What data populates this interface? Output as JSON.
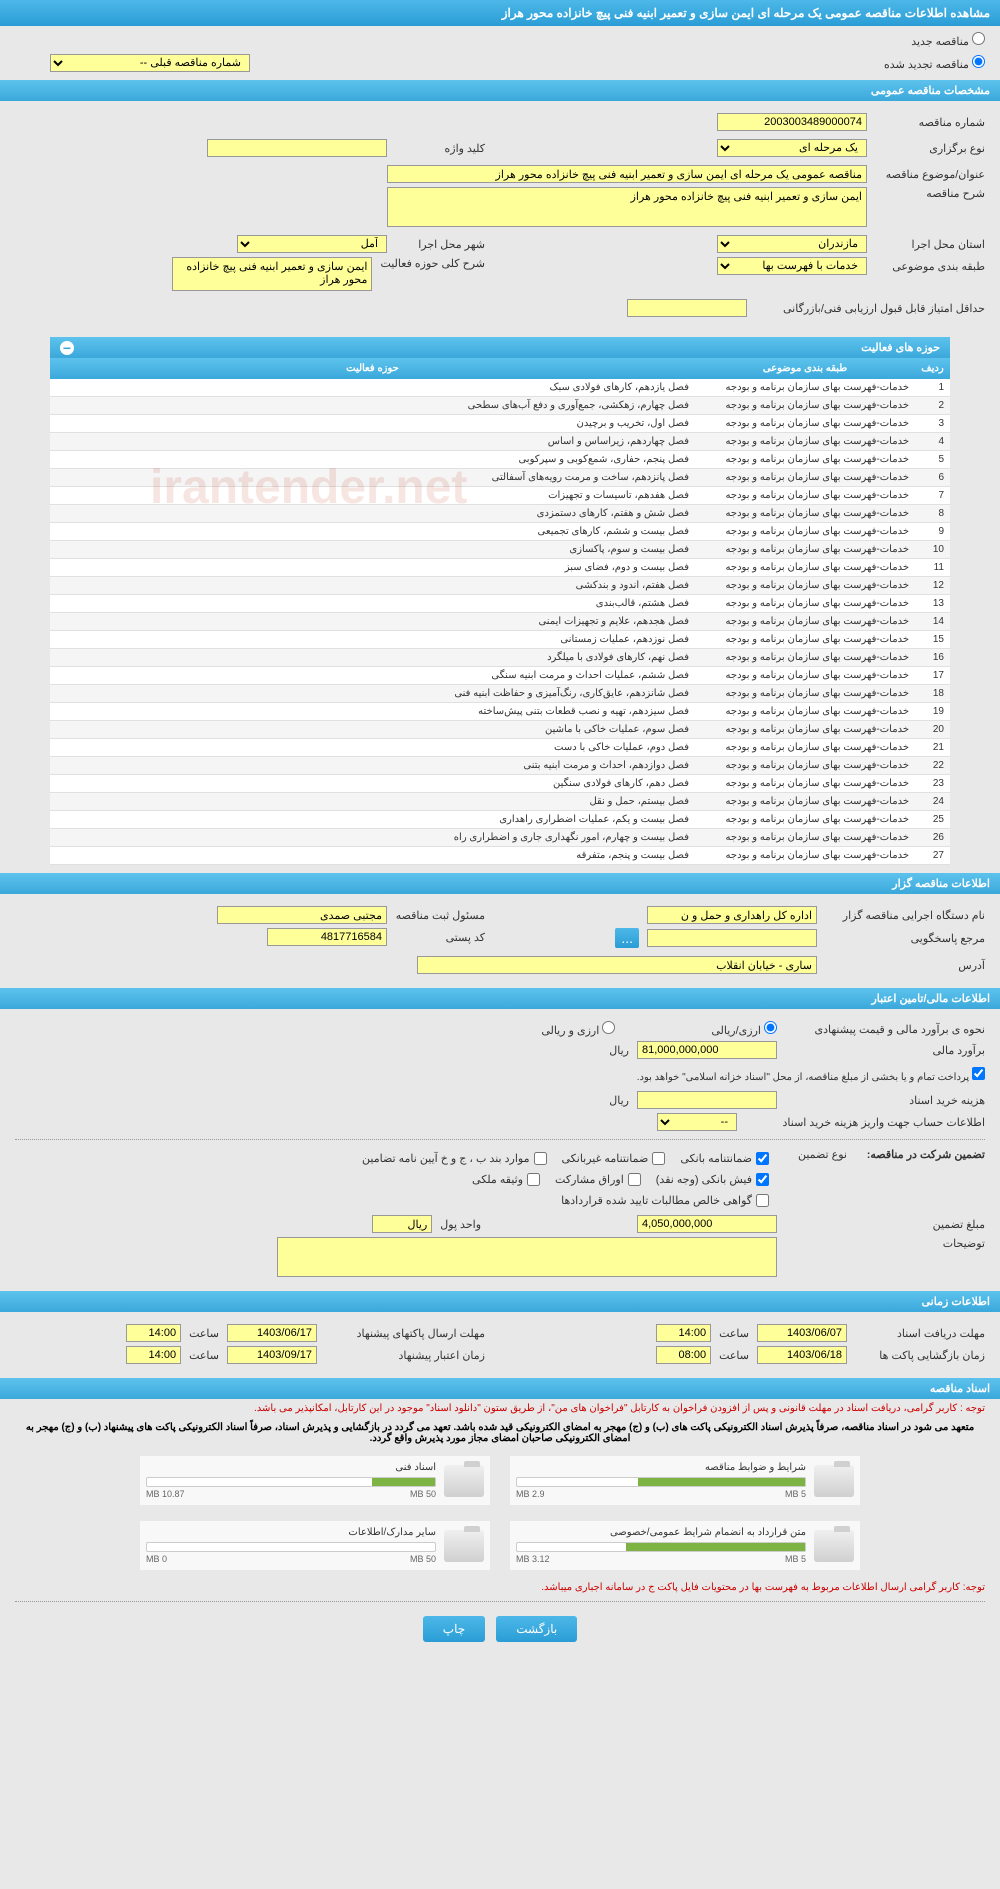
{
  "header": {
    "title": "مشاهده اطلاعات مناقصه عمومی یک مرحله ای ایمن سازی و تعمیر ابنیه فنی پیچ خانزاده محور هراز"
  },
  "mode": {
    "new_label": "مناقصه جدید",
    "renewed_label": "مناقصه تجدید شده",
    "prev_label": "شماره مناقصه قبلی --"
  },
  "sections": {
    "general": "مشخصات مناقصه عمومی",
    "activities": "حوزه های فعالیت",
    "organizer": "اطلاعات مناقصه گزار",
    "financial": "اطلاعات مالی/تامین اعتبار",
    "timing": "اطلاعات زمانی",
    "documents": "اسناد مناقصه"
  },
  "general": {
    "tender_no_label": "شماره مناقصه",
    "tender_no": "2003003489000074",
    "type_label": "نوع برگزاری",
    "type": "یک مرحله ای",
    "keyword_label": "کلید واژه",
    "keyword": "",
    "title_label": "عنوان/موضوع مناقصه",
    "title": "مناقصه عمومی یک مرحله ای ایمن سازی و تعمیر ابنیه فنی پیچ خانزاده محور هراز",
    "desc_label": "شرح مناقصه",
    "desc": "ایمن سازی و تعمیر ابنیه فنی پیچ خانزاده محور هراز",
    "province_label": "استان محل اجرا",
    "province": "مازندران",
    "city_label": "شهر محل اجرا",
    "city": "آمل",
    "category_label": "طبقه بندی موضوعی",
    "category": "خدمات با فهرست بها",
    "scope_label": "شرح کلی حوزه فعالیت",
    "scope": "ایمن سازی و تعمیر ابنیه فنی پیچ خانزاده محور هراز",
    "min_score_label": "حداقل امتیاز قابل قبول ارزیابی فنی/بازرگانی",
    "min_score": ""
  },
  "activity_table": {
    "col_num": "ردیف",
    "col_category": "طبقه بندی موضوعی",
    "col_scope": "حوزه فعالیت",
    "cat_text": "خدمات-فهرست بهای سازمان برنامه و بودجه",
    "rows": [
      {
        "n": "1",
        "scope": "فصل یازدهم، کارهای فولادی سبک"
      },
      {
        "n": "2",
        "scope": "فصل چهارم، زهکشی، جمع‌آوری و دفع آب‌های سطحی"
      },
      {
        "n": "3",
        "scope": "فصل اول، تخریب و برچیدن"
      },
      {
        "n": "4",
        "scope": "فصل چهاردهم، زیراساس و اساس"
      },
      {
        "n": "5",
        "scope": "فصل پنجم، حفاری، شمع‌کوبی و سپرکوبی"
      },
      {
        "n": "6",
        "scope": "فصل پانزدهم، ساخت و مرمت رویه‌های آسفالتی"
      },
      {
        "n": "7",
        "scope": "فصل هفدهم، تاسیسات و تجهیزات"
      },
      {
        "n": "8",
        "scope": "فصل شش و هفتم، کارهای دستمزدی"
      },
      {
        "n": "9",
        "scope": "فصل بیست و ششم، کارهای تجمیعی"
      },
      {
        "n": "10",
        "scope": "فصل بیست و سوم، پاکسازی"
      },
      {
        "n": "11",
        "scope": "فصل بیست و دوم، فضای سبز"
      },
      {
        "n": "12",
        "scope": "فصل هفتم، اندود و بندکشی"
      },
      {
        "n": "13",
        "scope": "فصل هشتم، قالب‌بندی"
      },
      {
        "n": "14",
        "scope": "فصل هجدهم، علایم و تجهیزات ایمنی"
      },
      {
        "n": "15",
        "scope": "فصل نوزدهم، عملیات زمستانی"
      },
      {
        "n": "16",
        "scope": "فصل نهم، کارهای فولادی با میلگرد"
      },
      {
        "n": "17",
        "scope": "فصل ششم، عملیات احداث و مرمت ابنیه سنگی"
      },
      {
        "n": "18",
        "scope": "فصل شانزدهم، عایق‌کاری، رنگ‌آمیزی و حفاظت ابنیه فنی"
      },
      {
        "n": "19",
        "scope": "فصل سیزدهم، تهیه و نصب قطعات بتنی پیش‌ساخته"
      },
      {
        "n": "20",
        "scope": "فصل سوم، عملیات خاکی با ماشین"
      },
      {
        "n": "21",
        "scope": "فصل دوم، عملیات خاکی با دست"
      },
      {
        "n": "22",
        "scope": "فصل دوازدهم، احداث و مرمت ابنیه بتنی"
      },
      {
        "n": "23",
        "scope": "فصل دهم، کارهای فولادی سنگین"
      },
      {
        "n": "24",
        "scope": "فصل بیستم، حمل و نقل"
      },
      {
        "n": "25",
        "scope": "فصل بیست و یکم، عملیات اضطراری راهداری"
      },
      {
        "n": "26",
        "scope": "فصل بیست و چهارم، امور نگهداری جاری و اضطراری راه"
      },
      {
        "n": "27",
        "scope": "فصل بیست و پنجم، متفرقه"
      }
    ]
  },
  "organizer": {
    "exec_label": "نام دستگاه اجرایی مناقصه گزار",
    "exec": "اداره کل راهداری و حمل و ن",
    "resp_label": "مسئول ثبت مناقصه",
    "resp": "مجتبی صمدی",
    "contact_label": "مرجع پاسخگویی",
    "contact": "",
    "postal_label": "کد پستی",
    "postal": "4817716584",
    "address_label": "آدرس",
    "address": "ساری - خیابان انقلاب"
  },
  "financial": {
    "estimate_type_label": "نحوه ی برآورد مالی و قیمت پیشنهادی",
    "opt_rial": "ارزی/ریالی",
    "opt_both": "ارزی و ریالی",
    "estimate_label": "برآورد مالی",
    "estimate": "81,000,000,000",
    "unit_rial": "ریال",
    "treasury_note": "پرداخت تمام و یا بخشی از مبلغ مناقصه، از محل \"اسناد خزانه اسلامی\" خواهد بود.",
    "doc_cost_label": "هزینه خرید اسناد",
    "doc_cost": "",
    "account_label": "اطلاعات حساب جهت واریز هزینه خرید اسناد",
    "account": "--",
    "guarantee_section_label": "تضمین شرکت در مناقصه:",
    "g_type_label": "نوع تضمین",
    "g_bank": "ضمانتنامه بانکی",
    "g_nonbank": "ضمانتنامه غیربانکی",
    "g_bond_label": "موارد بند ب ، ج و خ آیین نامه تضامین",
    "g_cash": "فیش بانکی (وجه نقد)",
    "g_securities": "اوراق مشارکت",
    "g_property": "وثیقه ملکی",
    "g_approved": "گواهی خالص مطالبات تایید شده قراردادها",
    "g_amount_label": "مبلغ تضمین",
    "g_amount": "4,050,000,000",
    "g_unit_label": "واحد پول",
    "g_unit": "ریال",
    "notes_label": "توضیحات"
  },
  "timing": {
    "receive_label": "مهلت دریافت اسناد",
    "receive_date": "1403/06/07",
    "receive_time_label": "ساعت",
    "receive_time": "14:00",
    "send_label": "مهلت ارسال پاکتهای پیشنهاد",
    "send_date": "1403/06/17",
    "send_time": "14:00",
    "open_label": "زمان بازگشایی پاکت ها",
    "open_date": "1403/06/18",
    "open_time": "08:00",
    "credit_label": "زمان اعتبار پیشنهاد",
    "credit_date": "1403/09/17",
    "credit_time": "14:00"
  },
  "warnings": {
    "w1": "توجه : کاربر گرامی، دریافت اسناد در مهلت قانونی و پس از افزودن فراخوان به کارتابل \"فراخوان های من\"، از طریق ستون \"دانلود اسناد\" موجود در این کارتابل، امکانپذیر می باشد.",
    "w2": "متعهد می شود در اسناد مناقصه، صرفاً پذیرش اسناد الکترونیکی پاکت های (ب) و (ج) مهجر به امضای الکترونیکی قید شده باشد. تعهد می گردد در بازگشایی و پذیرش اسناد، صرفاً اسناد الکترونیکی پاکت های پیشنهاد (ب) و (ج) مهجر به امضای الکترونیکی صاحبان امضای مجاز مورد پذیرش واقع گردد.",
    "w3": "توجه: کاربر گرامی ارسال اطلاعات مربوط به فهرست بها در محتویات فایل پاکت ج در سامانه اجباری میباشد."
  },
  "documents": {
    "d1_title": "شرایط و ضوابط مناقصه",
    "d1_used": "2.9 MB",
    "d1_total": "5 MB",
    "d1_pct": 58,
    "d2_title": "اسناد فنی",
    "d2_used": "10.87 MB",
    "d2_total": "50 MB",
    "d2_pct": 22,
    "d3_title": "متن قرارداد به انضمام شرایط عمومی/خصوصی",
    "d3_used": "3.12 MB",
    "d3_total": "5 MB",
    "d3_pct": 62,
    "d4_title": "سایر مدارک/اطلاعات",
    "d4_used": "0 MB",
    "d4_total": "50 MB",
    "d4_pct": 0
  },
  "buttons": {
    "back": "بازگشت",
    "print": "چاپ"
  },
  "watermark": "irantender.net",
  "colors": {
    "header_blue": "#3ba8db",
    "yellow": "#ffff99",
    "green": "#7cb342",
    "red": "#cc0000"
  }
}
